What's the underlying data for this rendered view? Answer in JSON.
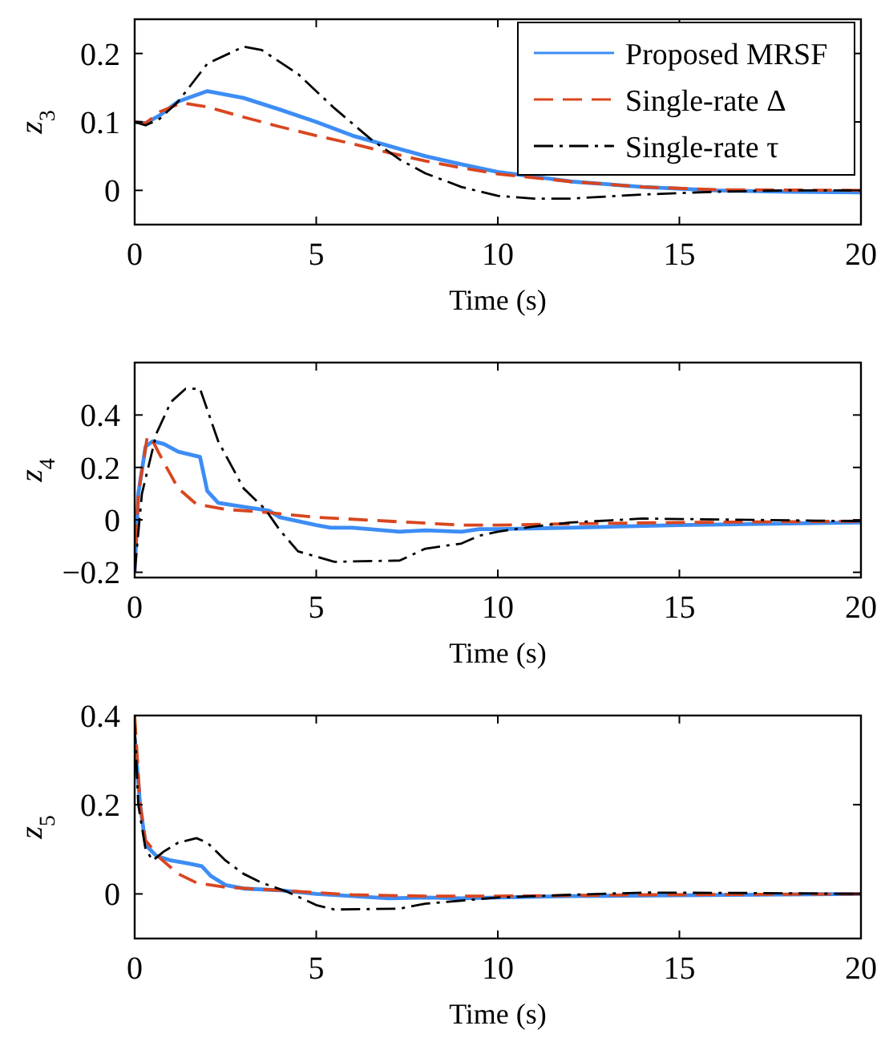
{
  "chart_data": [
    {
      "type": "line",
      "xlabel": "Time (s)",
      "ylabel": "z$_{3}$",
      "xlim": [
        0,
        20
      ],
      "xticks": [
        0,
        5,
        10,
        15,
        20
      ],
      "ylim": [
        -0.05,
        0.25
      ],
      "yticks": [
        0,
        0.1,
        0.2
      ],
      "legend": "top right",
      "grid": false,
      "series": [
        {
          "name": "Proposed MRSF",
          "color": "#3d8df5",
          "line_style": "solid",
          "x": [
            0,
            0.3,
            0.7,
            1.2,
            2,
            3,
            4,
            5,
            6,
            7,
            8,
            9,
            10,
            12,
            14,
            16,
            18,
            20
          ],
          "values": [
            0.1,
            0.098,
            0.11,
            0.13,
            0.145,
            0.135,
            0.118,
            0.1,
            0.08,
            0.065,
            0.05,
            0.038,
            0.027,
            0.013,
            0.005,
            0,
            -0.002,
            -0.003
          ]
        },
        {
          "name": "Single-rate Δ",
          "color": "#d9461f",
          "line_style": "dashed",
          "x": [
            0,
            0.3,
            0.7,
            1.3,
            2,
            3,
            4,
            5,
            6,
            7,
            8,
            9,
            10,
            12,
            14,
            16,
            20
          ],
          "values": [
            0.1,
            0.098,
            0.115,
            0.128,
            0.122,
            0.107,
            0.093,
            0.08,
            0.068,
            0.055,
            0.043,
            0.033,
            0.024,
            0.013,
            0.005,
            0.001,
            0
          ]
        },
        {
          "name": "Single-rate τ",
          "color": "#000000",
          "line_style": "dashdot",
          "x": [
            0,
            0.3,
            0.7,
            1.2,
            2,
            3,
            3.5,
            4.5,
            5.5,
            6.5,
            7.3,
            8,
            9,
            10,
            11,
            12,
            14,
            16,
            18,
            20
          ],
          "values": [
            0.1,
            0.095,
            0.105,
            0.13,
            0.185,
            0.21,
            0.205,
            0.17,
            0.12,
            0.075,
            0.045,
            0.025,
            0.005,
            -0.008,
            -0.012,
            -0.012,
            -0.006,
            -0.002,
            0,
            0
          ]
        }
      ]
    },
    {
      "type": "line",
      "xlabel": "Time (s)",
      "ylabel": "z$_{4}$",
      "xlim": [
        0,
        20
      ],
      "xticks": [
        0,
        5,
        10,
        15,
        20
      ],
      "ylim": [
        -0.22,
        0.6
      ],
      "yticks": [
        {
          "value": -0.2,
          "label": "−0.2"
        },
        0,
        0.2,
        0.4
      ],
      "legend": false,
      "grid": false,
      "series": [
        {
          "color": "#3d8df5",
          "line_style": "solid",
          "x": [
            0,
            0.1,
            0.3,
            0.5,
            0.8,
            1.2,
            1.8,
            2,
            2.3,
            3,
            3.7,
            4,
            5,
            5.4,
            6,
            7.3,
            8,
            9,
            9.5,
            10,
            12,
            15,
            20
          ],
          "values": [
            -0.2,
            0.1,
            0.28,
            0.3,
            0.29,
            0.26,
            0.24,
            0.11,
            0.065,
            0.05,
            0.035,
            0.01,
            -0.02,
            -0.03,
            -0.03,
            -0.045,
            -0.04,
            -0.045,
            -0.035,
            -0.035,
            -0.03,
            -0.02,
            -0.01
          ]
        },
        {
          "color": "#d9461f",
          "line_style": "dashed",
          "x": [
            0,
            0.1,
            0.35,
            0.5,
            0.8,
            1.2,
            1.7,
            2.5,
            3.5,
            5,
            7,
            9,
            10,
            12,
            15,
            20
          ],
          "values": [
            -0.2,
            0.1,
            0.32,
            0.3,
            0.22,
            0.12,
            0.06,
            0.04,
            0.03,
            0.01,
            -0.005,
            -0.02,
            -0.02,
            -0.015,
            -0.01,
            -0.005
          ]
        },
        {
          "color": "#000000",
          "line_style": "dashdot",
          "x": [
            0,
            0.2,
            0.6,
            1,
            1.4,
            1.8,
            2.3,
            3,
            3.6,
            4,
            4.5,
            5.5,
            7.3,
            8,
            9,
            9.5,
            10,
            11,
            12,
            14,
            17,
            20
          ],
          "values": [
            -0.2,
            0.1,
            0.33,
            0.45,
            0.5,
            0.5,
            0.3,
            0.12,
            0.04,
            -0.04,
            -0.12,
            -0.16,
            -0.155,
            -0.11,
            -0.09,
            -0.06,
            -0.045,
            -0.025,
            -0.01,
            0.005,
            0,
            -0.005
          ]
        }
      ]
    },
    {
      "type": "line",
      "xlabel": "Time (s)",
      "ylabel": "z$_{5}$",
      "xlim": [
        0,
        20
      ],
      "xticks": [
        0,
        5,
        10,
        15,
        20
      ],
      "ylim": [
        -0.1,
        0.4
      ],
      "yticks": [
        0,
        0.2,
        0.4
      ],
      "legend": false,
      "grid": false,
      "series": [
        {
          "color": "#3d8df5",
          "line_style": "solid",
          "x": [
            0,
            0.15,
            0.3,
            0.6,
            1,
            1.5,
            1.85,
            2.1,
            2.5,
            3,
            4,
            5,
            7,
            8,
            9,
            10,
            12,
            15,
            20
          ],
          "values": [
            0.35,
            0.2,
            0.11,
            0.085,
            0.075,
            0.068,
            0.062,
            0.04,
            0.02,
            0.012,
            0.008,
            0,
            -0.01,
            -0.008,
            -0.01,
            -0.008,
            -0.005,
            -0.003,
            0
          ]
        },
        {
          "color": "#d9461f",
          "line_style": "dashed",
          "x": [
            0,
            0.15,
            0.3,
            0.7,
            1.2,
            1.7,
            2.5,
            4,
            6,
            8,
            10,
            14,
            20
          ],
          "values": [
            0.4,
            0.2,
            0.12,
            0.08,
            0.045,
            0.025,
            0.015,
            0.008,
            -0.002,
            -0.005,
            -0.005,
            -0.002,
            0
          ]
        },
        {
          "color": "#000000",
          "line_style": "dashdot",
          "x": [
            0,
            0.1,
            0.3,
            0.5,
            0.8,
            1.2,
            1.7,
            2,
            2.5,
            3,
            3.5,
            4.2,
            5,
            5.5,
            7.3,
            8,
            9,
            10,
            12,
            14,
            17,
            20
          ],
          "values": [
            0.38,
            0.2,
            0.1,
            0.075,
            0.095,
            0.115,
            0.125,
            0.115,
            0.075,
            0.045,
            0.025,
            0.005,
            -0.025,
            -0.035,
            -0.033,
            -0.022,
            -0.015,
            -0.008,
            -0.002,
            0.003,
            0.002,
            0
          ]
        }
      ]
    }
  ]
}
